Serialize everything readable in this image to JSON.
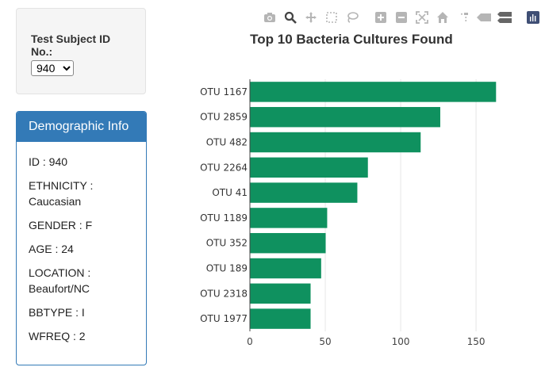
{
  "selector": {
    "label": "Test Subject ID No.:",
    "selected": "940"
  },
  "demographics": {
    "title": "Demographic Info",
    "lines": [
      "ID : 940",
      "ETHNICITY : Caucasian",
      "GENDER : F",
      "AGE : 24",
      "LOCATION : Beaufort/NC",
      "BBTYPE : I",
      "WFREQ : 2"
    ]
  },
  "modebar": {
    "icons": [
      "camera-icon",
      "zoom-icon",
      "pan-icon",
      "box-select-icon",
      "lasso-select-icon",
      "zoom-in-icon",
      "zoom-out-icon",
      "autoscale-icon",
      "reset-axes-icon",
      "spike-lines-icon",
      "hover-closest-icon",
      "hover-compare-icon",
      "plotly-logo-icon"
    ],
    "icon_color": "#b5b5b5",
    "active_color": "#444444",
    "logo_color": "#3f4f75"
  },
  "chart_data": {
    "type": "bar",
    "orientation": "horizontal",
    "title": "Top 10 Bacteria Cultures Found",
    "categories": [
      "OTU 1167",
      "OTU 2859",
      "OTU 482",
      "OTU 2264",
      "OTU 41",
      "OTU 1189",
      "OTU 352",
      "OTU 189",
      "OTU 2318",
      "OTU 1977"
    ],
    "values": [
      163,
      126,
      113,
      78,
      71,
      51,
      50,
      47,
      40,
      40
    ],
    "xticks": [
      0,
      50,
      100,
      150
    ],
    "xlim": [
      0,
      171
    ],
    "bar_color": "#0f915f",
    "grid": true,
    "xlabel": "",
    "ylabel": ""
  }
}
